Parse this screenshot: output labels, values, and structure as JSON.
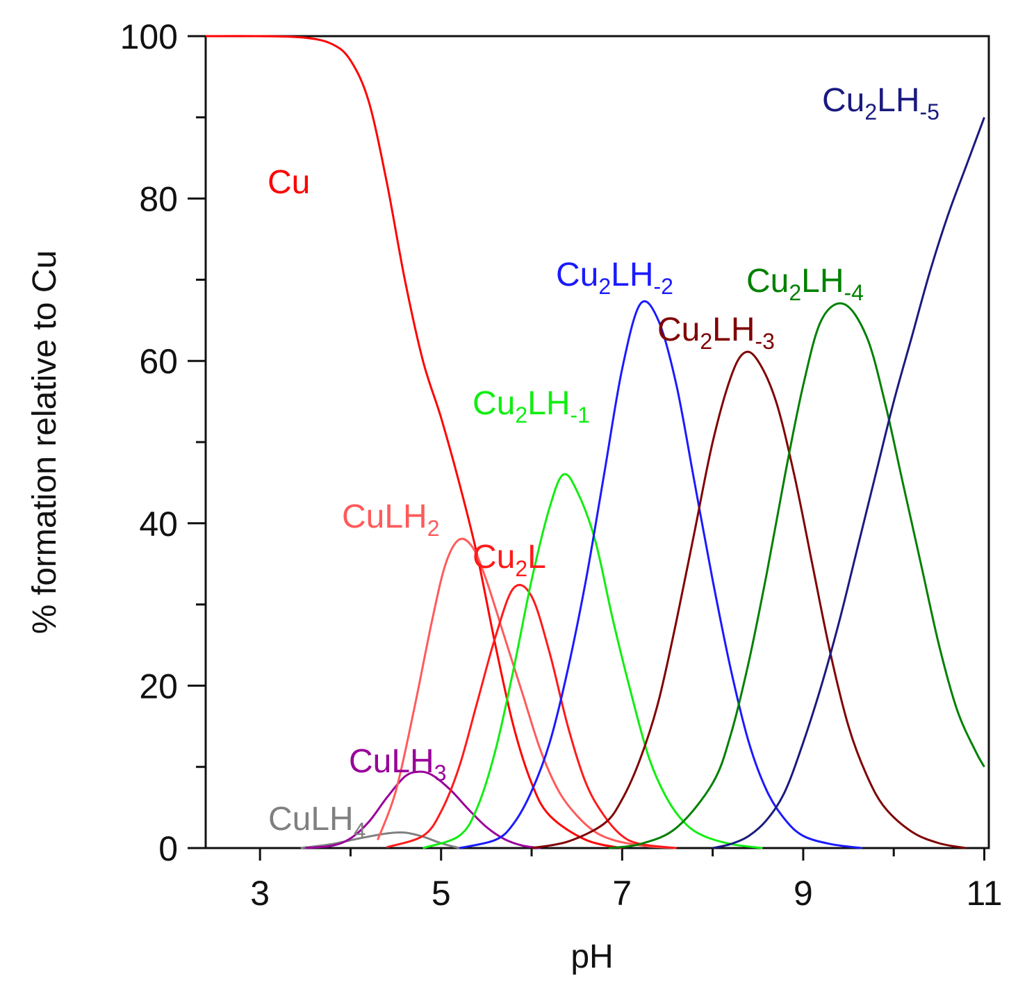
{
  "chart_data": {
    "type": "line",
    "xlabel": "pH",
    "ylabel": "% formation relative to Cu",
    "xlim": [
      2.4,
      11.05
    ],
    "ylim": [
      0,
      100
    ],
    "x_ticks": [
      3,
      5,
      7,
      9,
      11
    ],
    "x_minor_ticks": [
      4,
      6,
      8,
      10
    ],
    "y_ticks": [
      0,
      20,
      40,
      60,
      80,
      100
    ],
    "y_minor_ticks": [
      10,
      30,
      50,
      70,
      90
    ],
    "grid": false,
    "series": [
      {
        "name": "Cu",
        "label_main": "Cu",
        "label_sub": "",
        "label_tail": "",
        "color": "#ff0000",
        "x": [
          2.4,
          3.0,
          3.5,
          3.8,
          4.0,
          4.2,
          4.4,
          4.6,
          4.8,
          5.0,
          5.2,
          5.4,
          5.6,
          5.8,
          6.0,
          6.2,
          6.6,
          7.0
        ],
        "y": [
          100,
          100,
          99.8,
          99,
          97,
          92,
          82,
          70,
          60,
          53,
          45,
          36,
          25,
          15,
          8,
          4,
          1,
          0
        ]
      },
      {
        "name": "CuLH4",
        "label_main": "CuLH",
        "label_sub": "4",
        "label_tail": "",
        "color": "#808080",
        "x": [
          3.45,
          3.8,
          4.1,
          4.4,
          4.6,
          4.8,
          5.0,
          5.2
        ],
        "y": [
          0,
          0.5,
          1.2,
          1.8,
          1.9,
          1.4,
          0.6,
          0
        ]
      },
      {
        "name": "CuLH3",
        "label_main": "CuLH",
        "label_sub": "3",
        "label_tail": "",
        "color": "#990099",
        "x": [
          3.5,
          3.8,
          4.0,
          4.2,
          4.4,
          4.6,
          4.75,
          4.9,
          5.1,
          5.3,
          5.5,
          5.7,
          5.9,
          6.1
        ],
        "y": [
          0,
          0.3,
          1.2,
          3.2,
          6.2,
          8.8,
          9.4,
          9.0,
          7.2,
          4.8,
          2.6,
          1.1,
          0.3,
          0
        ]
      },
      {
        "name": "CuLH2",
        "label_main": "CuLH",
        "label_sub": "2",
        "label_tail": "",
        "color": "#ff5a5a",
        "x": [
          4.3,
          4.5,
          4.7,
          4.9,
          5.05,
          5.2,
          5.35,
          5.5,
          5.7,
          5.9,
          6.1,
          6.3,
          6.5,
          6.7,
          6.9,
          7.1,
          7.3,
          7.6
        ],
        "y": [
          1,
          7,
          17,
          28,
          35,
          38,
          37,
          33,
          26,
          19,
          12,
          7,
          4,
          2,
          1,
          0.5,
          0.2,
          0
        ]
      },
      {
        "name": "Cu2L",
        "label_main": "Cu",
        "label_sub": "2",
        "label_tail": "L",
        "color": "#ff1a1a",
        "x": [
          4.4,
          4.8,
          5.0,
          5.2,
          5.4,
          5.6,
          5.8,
          6.0,
          6.2,
          6.4,
          6.6,
          6.8,
          7.0,
          7.2,
          7.6
        ],
        "y": [
          0.1,
          1.5,
          4.5,
          10,
          18,
          26,
          32,
          31,
          24,
          15,
          8,
          4,
          1.5,
          0.5,
          0
        ]
      },
      {
        "name": "Cu2LH-1",
        "label_main": "Cu",
        "label_sub": "2",
        "label_tail": "LH",
        "label_sup": "-1",
        "color": "#11ee11",
        "x": [
          4.8,
          5.2,
          5.4,
          5.6,
          5.8,
          6.0,
          6.2,
          6.35,
          6.5,
          6.7,
          6.9,
          7.1,
          7.3,
          7.5,
          7.7,
          7.9,
          8.2,
          8.55
        ],
        "y": [
          0,
          1.5,
          5,
          12,
          22,
          33,
          42,
          46,
          44,
          38,
          28,
          19,
          11,
          6,
          3,
          1.5,
          0.5,
          0
        ]
      },
      {
        "name": "Cu2LH-2",
        "label_main": "Cu",
        "label_sub": "2",
        "label_tail": "LH",
        "label_sup": "-2",
        "color": "#1a1aff",
        "x": [
          5.2,
          5.6,
          5.8,
          6.0,
          6.2,
          6.4,
          6.6,
          6.8,
          7.0,
          7.2,
          7.4,
          7.6,
          7.8,
          8.0,
          8.2,
          8.4,
          8.6,
          8.8,
          9.0,
          9.3,
          9.65
        ],
        "y": [
          0,
          1,
          3,
          7,
          13,
          22,
          33,
          46,
          59,
          67,
          65,
          57,
          45,
          33,
          22,
          13,
          7,
          3.5,
          1.5,
          0.5,
          0
        ]
      },
      {
        "name": "Cu2LH-3",
        "label_main": "Cu",
        "label_sub": "2",
        "label_tail": "LH",
        "label_sup": "-3",
        "color": "#800000",
        "x": [
          6.0,
          6.4,
          6.8,
          7.0,
          7.2,
          7.4,
          7.6,
          7.8,
          8.0,
          8.2,
          8.35,
          8.5,
          8.7,
          8.9,
          9.1,
          9.3,
          9.5,
          9.7,
          9.9,
          10.2,
          10.5,
          10.8
        ],
        "y": [
          0,
          0.8,
          3,
          6,
          11,
          18,
          28,
          39,
          50,
          58,
          61,
          60,
          55,
          46,
          35,
          24,
          15,
          9,
          5,
          2,
          0.6,
          0
        ]
      },
      {
        "name": "Cu2LH-4",
        "label_main": "Cu",
        "label_sub": "2",
        "label_tail": "LH",
        "label_sup": "-4",
        "color": "#008000",
        "x": [
          6.85,
          7.2,
          7.6,
          8.0,
          8.2,
          8.4,
          8.6,
          8.8,
          9.0,
          9.2,
          9.45,
          9.7,
          9.9,
          10.1,
          10.3,
          10.5,
          10.7,
          10.9,
          11.0
        ],
        "y": [
          0,
          0.5,
          2.5,
          8,
          14,
          23,
          34,
          46,
          57,
          65,
          67,
          63,
          55,
          45,
          35,
          25,
          17,
          12,
          10
        ]
      },
      {
        "name": "Cu2LH-5",
        "label_main": "Cu",
        "label_sub": "2",
        "label_tail": "LH",
        "label_sup": "-5",
        "color": "#1a1a80",
        "x": [
          8.0,
          8.2,
          8.4,
          8.6,
          8.8,
          9.0,
          9.2,
          9.4,
          9.6,
          9.8,
          10.0,
          10.2,
          10.4,
          10.6,
          10.8,
          11.0
        ],
        "y": [
          0,
          0.5,
          1.5,
          3.5,
          7,
          13,
          20,
          28,
          37,
          46,
          55,
          63,
          71,
          78,
          84,
          90
        ]
      }
    ]
  }
}
